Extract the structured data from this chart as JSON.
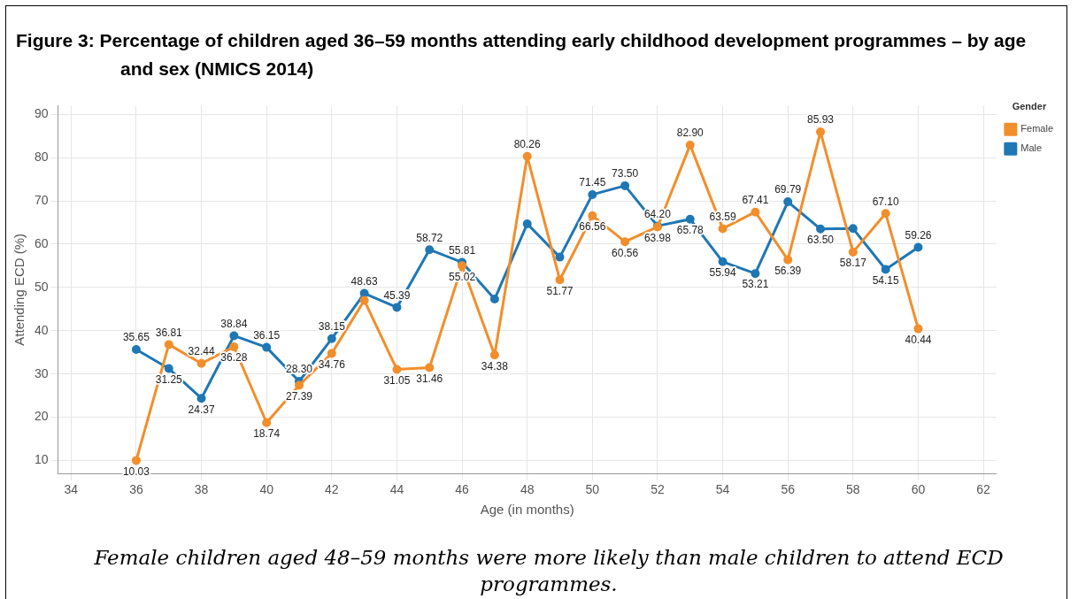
{
  "chart_data": {
    "type": "line",
    "title": "Figure 3: Percentage of children aged 36–59 months attending early childhood development programmes – by age and sex (NMICS 2014)",
    "xlabel": "Age (in months)",
    "ylabel": "Attending ECD (%)",
    "legend_title": "Gender",
    "legend": "top right",
    "grid": true,
    "marker": "circle",
    "line_style": "solid",
    "x": [
      36,
      37,
      38,
      39,
      40,
      41,
      42,
      43,
      44,
      45,
      46,
      47,
      48,
      49,
      50,
      51,
      52,
      53,
      54,
      55,
      56,
      57,
      58,
      59,
      60
    ],
    "xlim": [
      33.6,
      62.4
    ],
    "xticks": [
      34,
      36,
      38,
      40,
      42,
      44,
      46,
      48,
      50,
      52,
      54,
      56,
      58,
      60,
      62
    ],
    "ylim": [
      7,
      92
    ],
    "yticks": [
      10,
      20,
      30,
      40,
      50,
      60,
      70,
      80,
      90
    ],
    "series": [
      {
        "name": "Female",
        "color": "#f28e2b",
        "values": [
          10.03,
          36.81,
          32.44,
          36.28,
          18.74,
          27.39,
          34.76,
          47,
          31.05,
          31.46,
          55.02,
          34.38,
          80.26,
          51.77,
          66.56,
          60.56,
          63.98,
          82.9,
          63.59,
          67.41,
          56.39,
          85.93,
          58.17,
          67.1,
          40.44
        ],
        "value_labels": [
          "10.03",
          "36.81",
          "32.44",
          "36.28",
          "18.74",
          "27.39",
          "34.76",
          null,
          "31.05",
          "31.46",
          "55.02",
          "34.38",
          "80.26",
          "51.77",
          "66.56",
          "60.56",
          "63.98",
          "82.90",
          "63.59",
          "67.41",
          "56.39",
          "85.93",
          "58.17",
          "67.10",
          "40.44"
        ]
      },
      {
        "name": "Male",
        "color": "#1f77b4",
        "values": [
          35.65,
          31.25,
          24.37,
          38.84,
          36.15,
          28.3,
          38.15,
          48.63,
          45.39,
          58.72,
          55.81,
          47.3,
          64.7,
          57,
          71.45,
          73.5,
          64.2,
          65.78,
          55.94,
          53.21,
          69.79,
          63.5,
          63.6,
          54.15,
          59.26
        ],
        "value_labels": [
          "35.65",
          "31.25",
          "24.37",
          "38.84",
          "36.15",
          "28.30",
          "38.15",
          "48.63",
          "45.39",
          "58.72",
          "55.81",
          null,
          null,
          null,
          "71.45",
          "73.50",
          "64.20",
          "65.78",
          "55.94",
          "53.21",
          "69.79",
          "63.50",
          null,
          "54.15",
          "59.26"
        ]
      }
    ],
    "annotations": [
      "Female children aged 48–59 months were more likely than male children to attend ECD programmes."
    ]
  }
}
